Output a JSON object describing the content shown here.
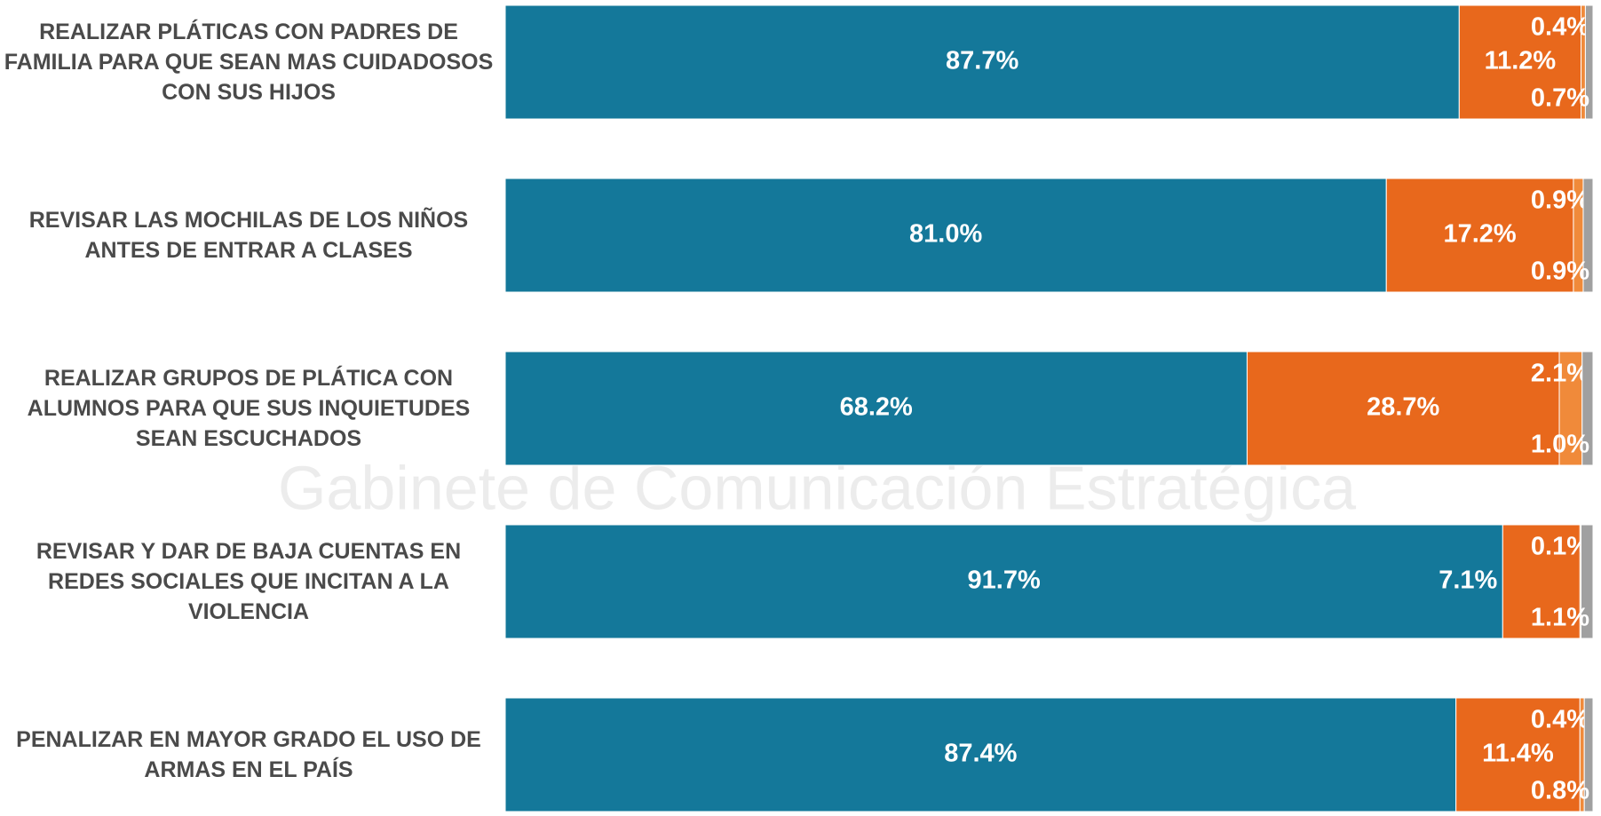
{
  "chart_data": {
    "type": "stacked-bar-horizontal",
    "watermark": "Gabinete de Comunicación Estratégica",
    "categories": [
      "REALIZAR PLÁTICAS CON PADRES DE FAMILIA PARA QUE SEAN MAS CUIDADOSOS CON SUS HIJOS",
      "REVISAR LAS MOCHILAS DE LOS NIÑOS ANTES DE ENTRAR A CLASES",
      "REALIZAR GRUPOS DE PLÁTICA CON ALUMNOS PARA QUE SUS INQUIETUDES SEAN ESCUCHADOS",
      "REVISAR Y DAR DE BAJA CUENTAS EN REDES SOCIALES QUE INCITAN A LA VIOLENCIA",
      "PENALIZAR EN MAYOR GRADO EL USO DE ARMAS EN EL PAÍS"
    ],
    "series": [
      {
        "color": "#14789a",
        "values": [
          87.7,
          81.0,
          68.2,
          91.7,
          87.4
        ],
        "value_labels": [
          "87.7%",
          "81.0%",
          "68.2%",
          "91.7%",
          "87.4%"
        ]
      },
      {
        "color": "#e8681c",
        "values": [
          11.2,
          17.2,
          28.7,
          7.1,
          11.4
        ],
        "value_labels": [
          "11.2%",
          "17.2%",
          "28.7%",
          "7.1%",
          "11.4%"
        ]
      },
      {
        "color": "#f08a3a",
        "values": [
          0.4,
          0.9,
          2.1,
          0.1,
          0.4
        ],
        "value_labels": [
          "0.4%",
          "0.9%",
          "2.1%",
          "0.1%",
          "0.4%"
        ]
      },
      {
        "color": "#a0a0a0",
        "values": [
          0.7,
          0.9,
          1.0,
          1.1,
          0.8
        ],
        "value_labels": [
          "0.7%",
          "0.9%",
          "1.0%",
          "1.1%",
          "0.8%"
        ]
      }
    ],
    "xlim": [
      0,
      100
    ]
  }
}
